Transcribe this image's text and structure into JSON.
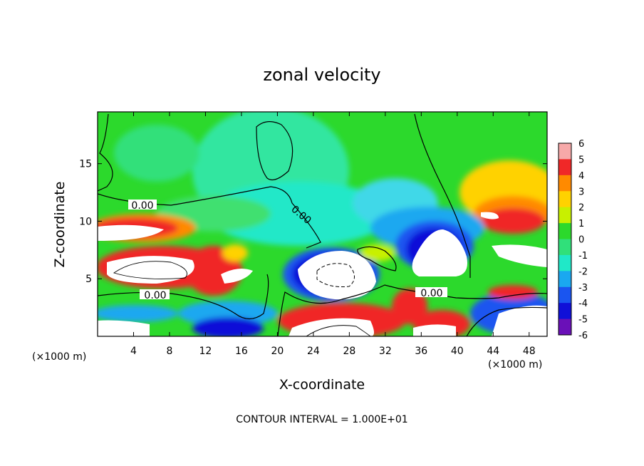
{
  "chart_data": {
    "type": "heatmap",
    "title": "zonal velocity",
    "xlabel": "X-coordinate",
    "ylabel": "Z-coordinate",
    "x_unit": "(×1000 m)",
    "x_unit_right": "(×1000 m)",
    "xlim": [
      0,
      50
    ],
    "ylim": [
      0,
      19.5
    ],
    "x_ticks": [
      4,
      8,
      12,
      16,
      20,
      24,
      28,
      32,
      36,
      40,
      44,
      48
    ],
    "y_ticks": [
      5,
      10,
      15
    ],
    "colorbar": {
      "ticks": [
        "6",
        "5",
        "4",
        "3",
        "2",
        "1",
        "0",
        "-1",
        "-2",
        "-3",
        "-4",
        "-5",
        "-6"
      ],
      "levels": [
        {
          "from": 5,
          "to": 6,
          "color": "#f7a9a9"
        },
        {
          "from": 4,
          "to": 5,
          "color": "#f02828"
        },
        {
          "from": 3,
          "to": 4,
          "color": "#ff8a00"
        },
        {
          "from": 2,
          "to": 3,
          "color": "#ffd200"
        },
        {
          "from": 1,
          "to": 2,
          "color": "#c8f000"
        },
        {
          "from": 0,
          "to": 1,
          "color": "#2cd92c"
        },
        {
          "from": -1,
          "to": 0,
          "color": "#30e07a"
        },
        {
          "from": -2,
          "to": -1,
          "color": "#20e8c8"
        },
        {
          "from": -3,
          "to": -2,
          "color": "#1aa8f0"
        },
        {
          "from": -4,
          "to": -3,
          "color": "#1a55f0"
        },
        {
          "from": -5,
          "to": -4,
          "color": "#1010d8"
        },
        {
          "from": -6,
          "to": -5,
          "color": "#6a10b8"
        }
      ]
    },
    "contour_labels": [
      "0.00",
      "0.00",
      "0.00",
      "0.00"
    ],
    "contour_interval_text": "CONTOUR INTERVAL = 1.000E+01"
  }
}
